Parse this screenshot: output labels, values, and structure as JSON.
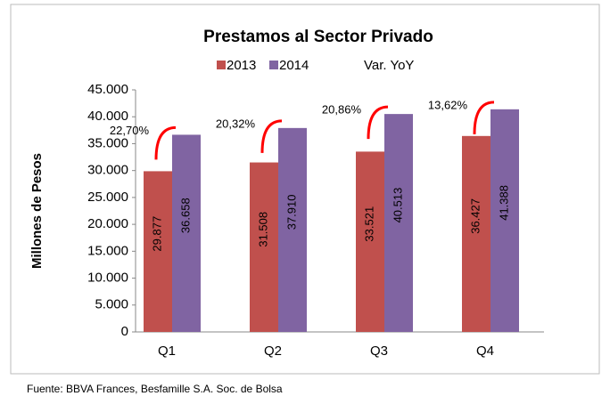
{
  "chart_data": {
    "type": "bar",
    "title": "Prestamos al Sector Privado",
    "y_label": "Millones de Pesos",
    "source": "Fuente: BBVA Frances, Besfamille S.A. Soc. de Bolsa",
    "categories": [
      "Q1",
      "Q2",
      "Q3",
      "Q4"
    ],
    "series": [
      {
        "name": "2013",
        "color": "#c0504d",
        "values": [
          29877,
          31508,
          33521,
          36427
        ],
        "value_labels": [
          "29.877",
          "31.508",
          "33.521",
          "36.427"
        ]
      },
      {
        "name": "2014",
        "color": "#8064a2",
        "values": [
          36658,
          37910,
          40513,
          41388
        ],
        "value_labels": [
          "36.658",
          "37.910",
          "40.513",
          "41.388"
        ]
      }
    ],
    "yoy": {
      "name": "Var. YoY",
      "color": "#ff0000",
      "values": [
        22.7,
        20.32,
        20.86,
        13.62
      ],
      "value_labels": [
        "22,70%",
        "20,32%",
        "20,86%",
        "13,62%"
      ]
    },
    "ylim": [
      0,
      45000
    ],
    "yticks": [
      0,
      {
        "value": 5000,
        "label": "5.000"
      },
      {
        "value": 10000,
        "label": "10.000"
      },
      {
        "value": 15000,
        "label": "15.000"
      },
      {
        "value": 20000,
        "label": "20.000"
      },
      {
        "value": 25000,
        "label": "25.000"
      },
      {
        "value": 30000,
        "label": "30.000"
      },
      {
        "value": 35000,
        "label": "35.000"
      },
      {
        "value": 40000,
        "label": "40.000"
      },
      {
        "value": 45000,
        "label": "45.000"
      }
    ],
    "grid": false
  }
}
